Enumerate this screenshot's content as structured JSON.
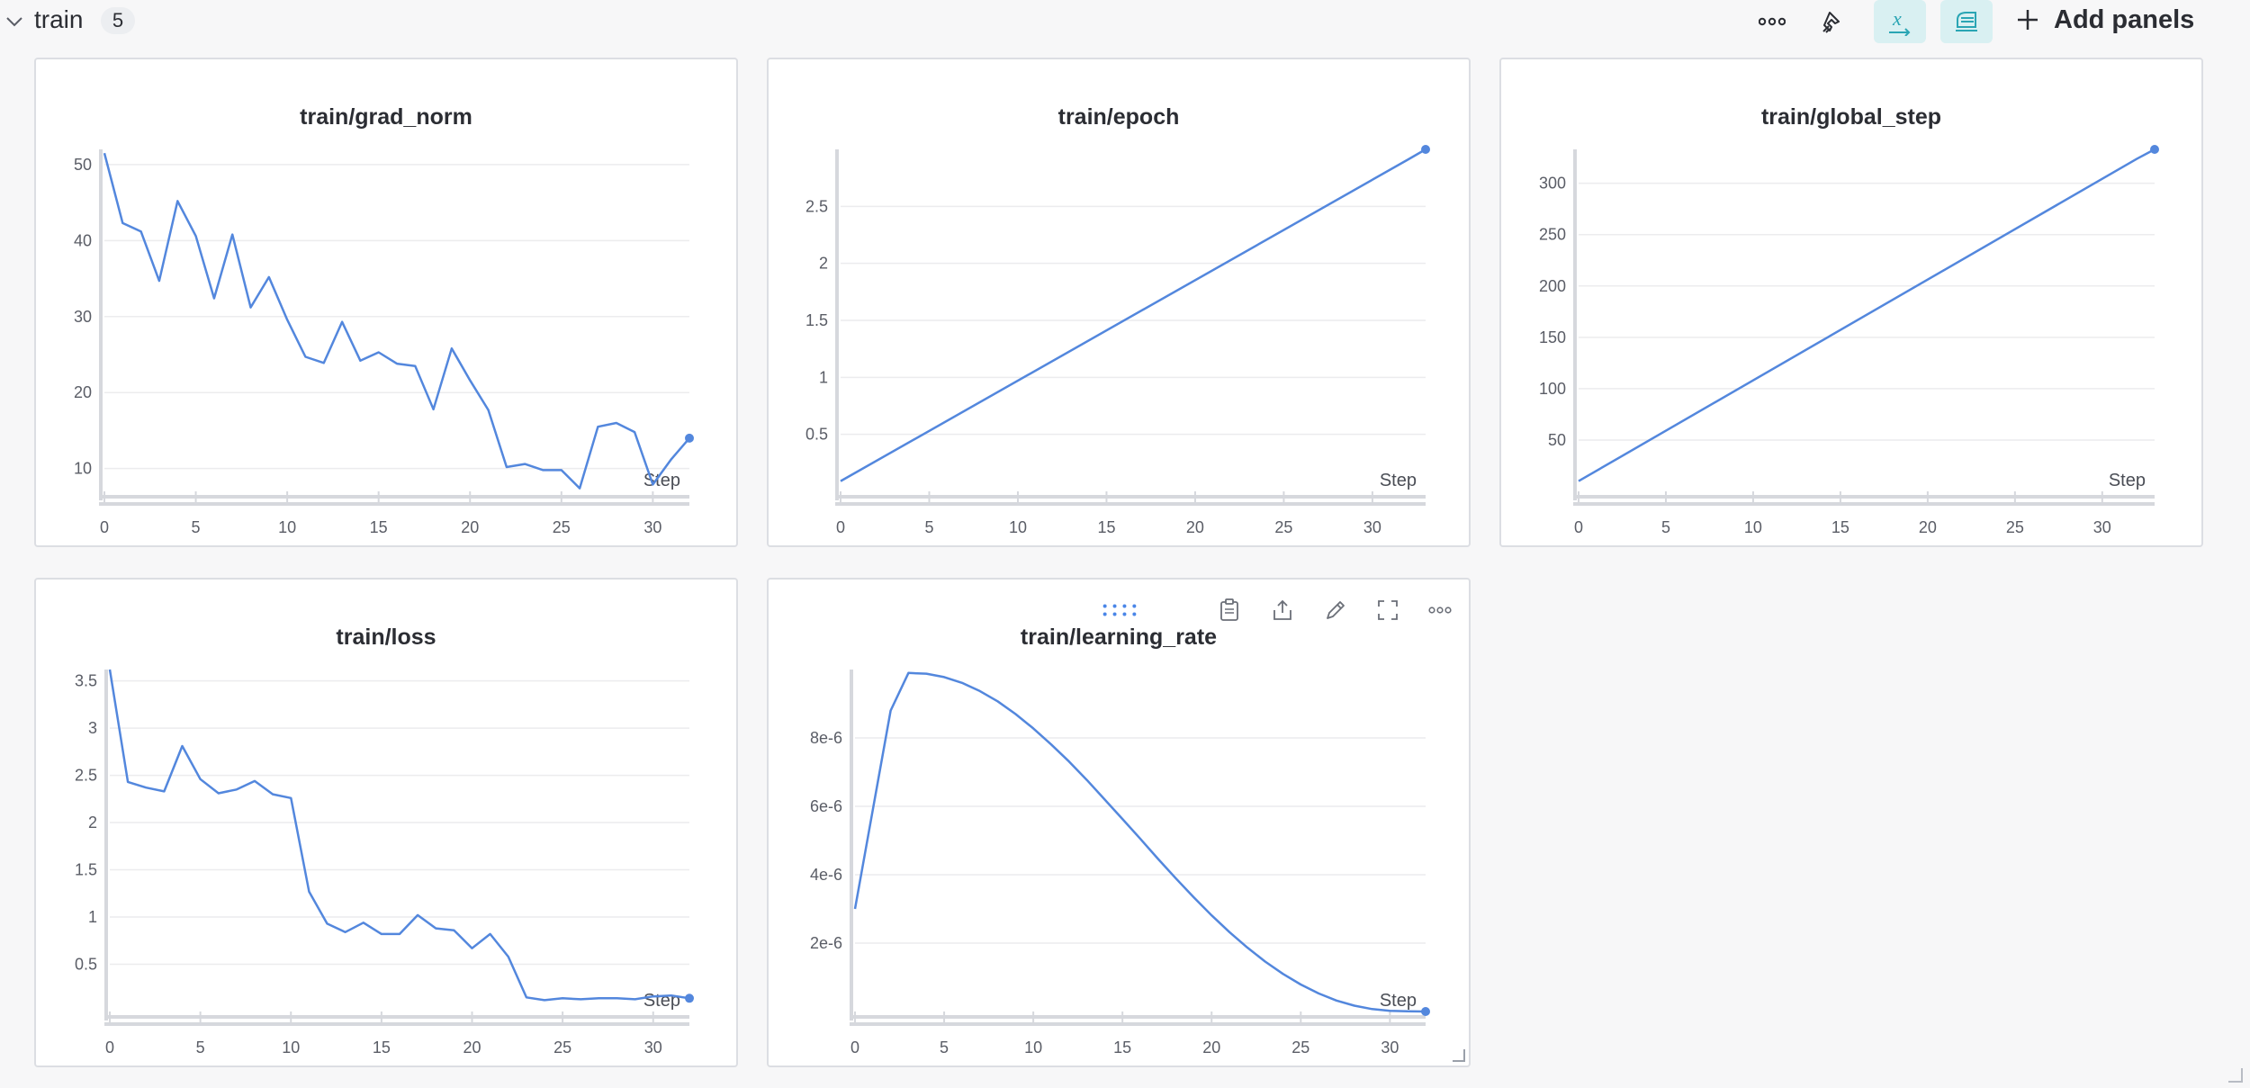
{
  "section": {
    "title": "train",
    "count": "5"
  },
  "header": {
    "add_panels_label": "Add panels",
    "icons": [
      "more-icon",
      "pin-icon",
      "x-axis-icon",
      "smoothing-icon",
      "plus-icon"
    ]
  },
  "colors": {
    "series": "#5387dd",
    "active_button_bg": "#d9f0f2",
    "active_icon": "#2aa5b4"
  },
  "panels": [
    {
      "title": "train/grad_norm",
      "step_label": "Step",
      "chart_data": {
        "type": "line",
        "title": "train/grad_norm",
        "xlabel": "Step",
        "ylabel": "",
        "xlim": [
          0,
          32
        ],
        "ylim": [
          7,
          52
        ],
        "xticks": [
          0,
          5,
          10,
          15,
          20,
          25,
          30
        ],
        "yticks": [
          10,
          20,
          30,
          40,
          50
        ],
        "ytick_labels": [
          "10",
          "20",
          "30",
          "40",
          "50"
        ],
        "x": [
          0,
          1,
          2,
          3,
          4,
          5,
          6,
          7,
          8,
          9,
          10,
          11,
          12,
          13,
          14,
          15,
          16,
          17,
          18,
          19,
          20,
          21,
          22,
          23,
          24,
          25,
          26,
          27,
          28,
          29,
          30,
          31,
          32
        ],
        "y": [
          51.5,
          42.3,
          41.2,
          34.7,
          45.2,
          40.6,
          32.4,
          40.8,
          31.2,
          35.2,
          29.6,
          24.7,
          23.9,
          29.3,
          24.2,
          25.3,
          23.8,
          23.5,
          17.8,
          25.8,
          21.6,
          17.7,
          10.2,
          10.6,
          9.8,
          9.8,
          7.4,
          15.5,
          16.0,
          14.8,
          7.9,
          11.2,
          14.0
        ],
        "grid": true
      }
    },
    {
      "title": "train/epoch",
      "step_label": "Step",
      "chart_data": {
        "type": "line",
        "title": "train/epoch",
        "xlabel": "Step",
        "ylabel": "",
        "xlim": [
          0,
          33
        ],
        "ylim": [
          0,
          3
        ],
        "xticks": [
          0,
          5,
          10,
          15,
          20,
          25,
          30
        ],
        "yticks": [
          0.5,
          1,
          1.5,
          2,
          2.5
        ],
        "ytick_labels": [
          "0.5",
          "1",
          "1.5",
          "2",
          "2.5"
        ],
        "x": [
          0,
          32,
          33
        ],
        "y": [
          0.09,
          2.91,
          3.0
        ],
        "grid": true
      }
    },
    {
      "title": "train/global_step",
      "step_label": "Step",
      "chart_data": {
        "type": "line",
        "title": "train/global_step",
        "xlabel": "Step",
        "ylabel": "",
        "xlim": [
          0,
          33
        ],
        "ylim": [
          0,
          333
        ],
        "xticks": [
          0,
          5,
          10,
          15,
          20,
          25,
          30
        ],
        "yticks": [
          50,
          100,
          150,
          200,
          250,
          300
        ],
        "ytick_labels": [
          "50",
          "100",
          "150",
          "200",
          "250",
          "300"
        ],
        "x": [
          0,
          32,
          33
        ],
        "y": [
          10,
          324,
          333
        ],
        "grid": true
      }
    },
    {
      "title": "train/loss",
      "step_label": "Step",
      "chart_data": {
        "type": "line",
        "title": "train/loss",
        "xlabel": "Step",
        "ylabel": "",
        "xlim": [
          0,
          32
        ],
        "ylim": [
          0,
          3.62
        ],
        "xticks": [
          0,
          5,
          10,
          15,
          20,
          25,
          30
        ],
        "yticks": [
          0.5,
          1,
          1.5,
          2,
          2.5,
          3,
          3.5
        ],
        "ytick_labels": [
          "0.5",
          "1",
          "1.5",
          "2",
          "2.5",
          "3",
          "3.5"
        ],
        "x": [
          0,
          1,
          2,
          3,
          4,
          5,
          6,
          7,
          8,
          9,
          10,
          11,
          12,
          13,
          14,
          15,
          16,
          17,
          18,
          19,
          20,
          21,
          22,
          23,
          24,
          25,
          26,
          27,
          28,
          29,
          30,
          31,
          32
        ],
        "y": [
          3.62,
          2.43,
          2.37,
          2.33,
          2.81,
          2.46,
          2.31,
          2.35,
          2.44,
          2.3,
          2.26,
          1.27,
          0.93,
          0.84,
          0.94,
          0.82,
          0.82,
          1.02,
          0.88,
          0.86,
          0.67,
          0.82,
          0.58,
          0.15,
          0.12,
          0.14,
          0.13,
          0.14,
          0.14,
          0.13,
          0.16,
          0.17,
          0.14
        ],
        "grid": true
      }
    },
    {
      "title": "train/learning_rate",
      "step_label": "Step",
      "chart_data": {
        "type": "line",
        "title": "train/learning_rate",
        "xlabel": "Step",
        "ylabel": "",
        "xlim": [
          0,
          32
        ],
        "ylim": [
          0,
          1e-05
        ],
        "xticks": [
          0,
          5,
          10,
          15,
          20,
          25,
          30
        ],
        "yticks": [
          2e-06,
          4e-06,
          6e-06,
          8e-06
        ],
        "ytick_labels": [
          "2e-6",
          "4e-6",
          "6e-6",
          "8e-6"
        ],
        "x": [
          0,
          1,
          2,
          3,
          4,
          5,
          6,
          7,
          8,
          9,
          10,
          11,
          12,
          13,
          14,
          15,
          16,
          17,
          18,
          19,
          20,
          21,
          22,
          23,
          24,
          25,
          26,
          27,
          28,
          29,
          30,
          31,
          32
        ],
        "y": [
          3e-06,
          5.9e-06,
          8.8e-06,
          9.9e-06,
          9.88e-06,
          9.78e-06,
          9.61e-06,
          9.37e-06,
          9.07e-06,
          8.7e-06,
          8.28e-06,
          7.81e-06,
          7.31e-06,
          6.77e-06,
          6.2e-06,
          5.63e-06,
          5.05e-06,
          4.46e-06,
          3.89e-06,
          3.34e-06,
          2.81e-06,
          2.32e-06,
          1.87e-06,
          1.46e-06,
          1.1e-06,
          7.9e-07,
          5.3e-07,
          3.2e-07,
          1.7e-07,
          7e-08,
          2e-08,
          5e-09,
          0.0
        ],
        "grid": true
      }
    }
  ],
  "hover_toolbar_icons": [
    "drag-handle-icon",
    "clipboard-icon",
    "share-icon",
    "edit-icon",
    "fullscreen-icon",
    "more-icon"
  ]
}
